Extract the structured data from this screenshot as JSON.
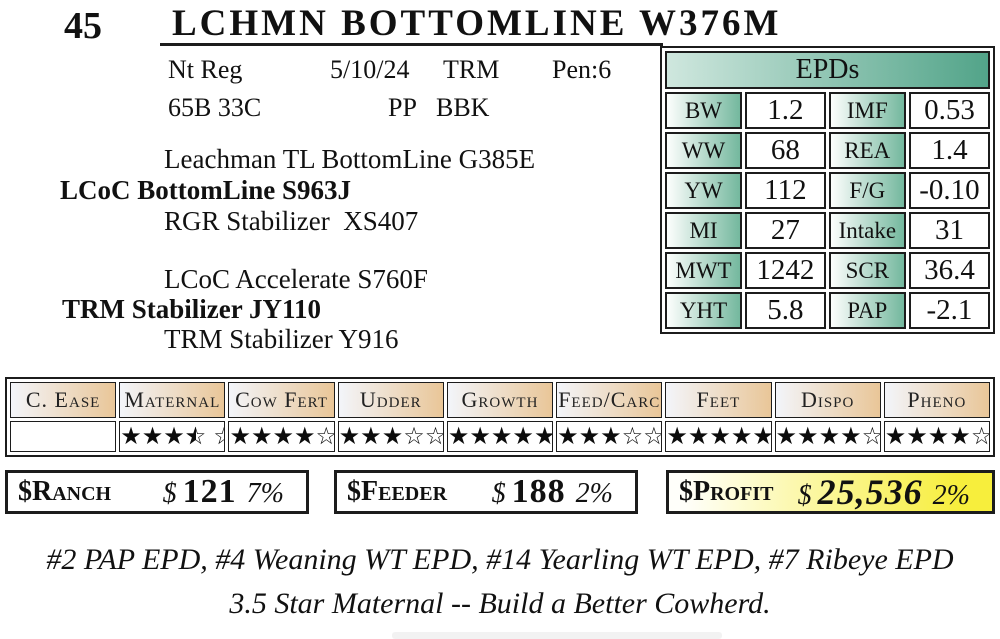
{
  "lot": {
    "number": "45",
    "title": "LCHMN BOTTOMLINE W376M"
  },
  "info": {
    "reg": "Nt Reg",
    "birth_date": "5/10/24",
    "breed": "TRM",
    "pen": "Pen:6",
    "tattoo": "65B 33C",
    "polled": "PP",
    "color_code": "BBK"
  },
  "pedigree": {
    "sire_sire": "Leachman TL BottomLine G385E",
    "sire": "LCoC BottomLine S963J",
    "sire_dam": "RGR Stabilizer  XS407",
    "dam_sire": "LCoC Accelerate S760F",
    "dam": "TRM Stabilizer JY110",
    "dam_dam": "TRM Stabilizer Y916"
  },
  "epds": {
    "header": "EPDs",
    "rows": [
      {
        "l1": "BW",
        "v1": "1.2",
        "l2": "IMF",
        "v2": "0.53"
      },
      {
        "l1": "WW",
        "v1": "68",
        "l2": "REA",
        "v2": "1.4"
      },
      {
        "l1": "YW",
        "v1": "112",
        "l2": "F/G",
        "v2": "-0.10"
      },
      {
        "l1": "MI",
        "v1": "27",
        "l2": "Intake",
        "v2": "31"
      },
      {
        "l1": "MWT",
        "v1": "1242",
        "l2": "SCR",
        "v2": "36.4"
      },
      {
        "l1": "YHT",
        "v1": "5.8",
        "l2": "PAP",
        "v2": "-2.1"
      }
    ]
  },
  "star_table": {
    "columns": [
      {
        "label": "C. Ease",
        "full": 0,
        "half": 0,
        "empty": 0
      },
      {
        "label": "Maternal",
        "full": 3,
        "half": 1,
        "empty": 1
      },
      {
        "label": "Cow Fert",
        "full": 4,
        "half": 0,
        "empty": 1
      },
      {
        "label": "Udder",
        "full": 3,
        "half": 0,
        "empty": 2
      },
      {
        "label": "Growth",
        "full": 5,
        "half": 0,
        "empty": 0
      },
      {
        "label": "Feed/Carc",
        "full": 3,
        "half": 0,
        "empty": 2
      },
      {
        "label": "Feet",
        "full": 5,
        "half": 0,
        "empty": 0
      },
      {
        "label": "Dispo",
        "full": 4,
        "half": 0,
        "empty": 1
      },
      {
        "label": "Pheno",
        "full": 4,
        "half": 0,
        "empty": 1
      }
    ]
  },
  "indexes": {
    "ranch": {
      "label": "$Ranch",
      "currency": "$",
      "value": "121",
      "pct": "7%"
    },
    "feeder": {
      "label": "$Feeder",
      "currency": "$",
      "value": "188",
      "pct": "2%"
    },
    "profit": {
      "label": "$Profit",
      "currency": "$",
      "value": "25,536",
      "pct": "2%"
    }
  },
  "footnotes": {
    "line1": "#2 PAP EPD, #4 Weaning WT EPD, #14 Yearling WT EPD, #7 Ribeye EPD",
    "line2": "3.5 Star Maternal -- Build a Better Cowherd."
  },
  "colors": {
    "teal_dark": "#52a489",
    "teal_cell": "#74b89e",
    "teal_pale": "#cfe7de",
    "tan": "#e9c698",
    "tan_pale": "#f3f5fa",
    "yellow": "#f7ee3c",
    "border": "#1c1c1c"
  }
}
